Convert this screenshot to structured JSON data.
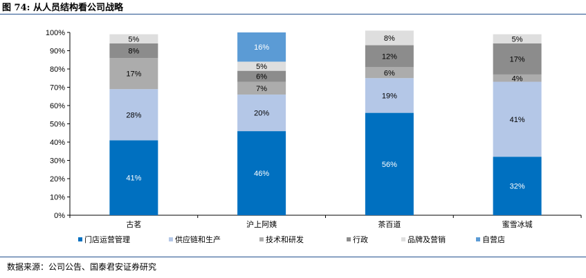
{
  "figure": {
    "title": "图 74:  从人员结构看公司战略",
    "source": "数据来源：公司公告、国泰君安证券研究"
  },
  "colors": {
    "门店运营管理": "#0070c0",
    "供应链和生产": "#b4c7e7",
    "技术和研发": "#acacac",
    "行政": "#8c8c8c",
    "品牌及营销": "#dedede",
    "自营店": "#5b9bd5"
  },
  "chart_data": {
    "type": "bar",
    "stacked": true,
    "categories": [
      "古茗",
      "沪上阿姨",
      "茶百道",
      "蜜雪冰城"
    ],
    "ylim": [
      0,
      100
    ],
    "yticks": [
      "0%",
      "10%",
      "20%",
      "30%",
      "40%",
      "50%",
      "60%",
      "70%",
      "80%",
      "90%",
      "100%"
    ],
    "legend_position": "bottom",
    "series": [
      {
        "name": "门店运营管理",
        "values": [
          41,
          46,
          56,
          32
        ],
        "labels": [
          "41%",
          "46%",
          "56%",
          "32%"
        ]
      },
      {
        "name": "供应链和生产",
        "values": [
          28,
          20,
          19,
          41
        ],
        "labels": [
          "28%",
          "20%",
          "19%",
          "41%"
        ]
      },
      {
        "name": "技术和研发",
        "values": [
          17,
          7,
          6,
          4
        ],
        "labels": [
          "17%",
          "7%",
          "6%",
          "4%"
        ]
      },
      {
        "name": "行政",
        "values": [
          8,
          6,
          12,
          17
        ],
        "labels": [
          "8%",
          "6%",
          "12%",
          "17%"
        ]
      },
      {
        "name": "品牌及营销",
        "values": [
          5,
          5,
          8,
          5
        ],
        "labels": [
          "5%",
          "5%",
          "8%",
          "5%"
        ]
      },
      {
        "name": "自营店",
        "values": [
          0,
          16,
          0,
          0
        ],
        "labels": [
          "",
          "16%",
          "",
          ""
        ]
      }
    ]
  }
}
